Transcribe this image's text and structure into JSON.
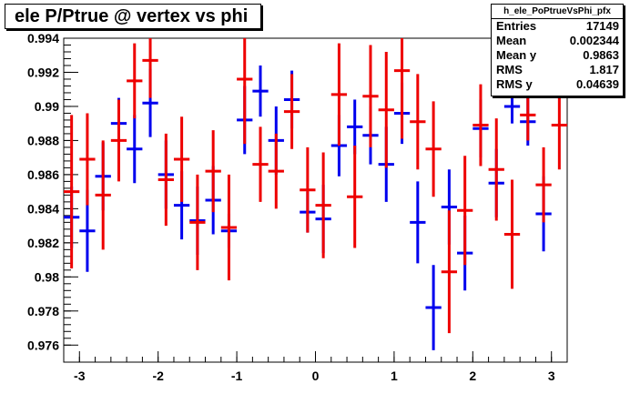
{
  "title": "ele P/Ptrue @ vertex vs phi",
  "stats": {
    "name": "h_ele_PoPtrueVsPhi_pfx",
    "rows": [
      {
        "label": "Entries",
        "value": "17149"
      },
      {
        "label": "Mean",
        "value": "0.002344"
      },
      {
        "label": "Mean y",
        "value": "0.9863"
      },
      {
        "label": "RMS",
        "value": "1.817"
      },
      {
        "label": "RMS y",
        "value": "0.04639"
      }
    ]
  },
  "chart_data": {
    "type": "scatter",
    "title": "ele P/Ptrue @ vertex vs phi",
    "xlim": [
      -3.2,
      3.2
    ],
    "ylim": [
      0.975,
      0.994
    ],
    "x_ticks": [
      -3,
      -2,
      -1,
      0,
      1,
      2,
      3
    ],
    "x_tick_labels": [
      "-3",
      "-2",
      "-1",
      "0",
      "1",
      "2",
      "3"
    ],
    "y_ticks": [
      0.976,
      0.978,
      0.98,
      0.982,
      0.984,
      0.986,
      0.988,
      0.99,
      0.992,
      0.994
    ],
    "y_tick_labels": [
      "0.976",
      "0.978",
      "0.98",
      "0.982",
      "0.984",
      "0.986",
      "0.988",
      "0.99",
      "0.992",
      "0.994"
    ],
    "grid": false,
    "bin_half_width": 0.1,
    "series": [
      {
        "color": "#0000ee",
        "points": [
          {
            "x": -3.1,
            "y": 0.9835,
            "err": 0.0018
          },
          {
            "x": -2.9,
            "y": 0.9827,
            "err": 0.0024
          },
          {
            "x": -2.7,
            "y": 0.9859,
            "err": 0.002
          },
          {
            "x": -2.5,
            "y": 0.989,
            "err": 0.0015
          },
          {
            "x": -2.3,
            "y": 0.9875,
            "err": 0.002
          },
          {
            "x": -2.1,
            "y": 0.9902,
            "err": 0.002
          },
          {
            "x": -1.9,
            "y": 0.986,
            "err": 0.002
          },
          {
            "x": -1.7,
            "y": 0.9842,
            "err": 0.002
          },
          {
            "x": -1.5,
            "y": 0.9833,
            "err": 0.002
          },
          {
            "x": -1.3,
            "y": 0.9845,
            "err": 0.002
          },
          {
            "x": -1.1,
            "y": 0.9827,
            "err": 0.001
          },
          {
            "x": -0.9,
            "y": 0.9892,
            "err": 0.002
          },
          {
            "x": -0.7,
            "y": 0.9909,
            "err": 0.0015
          },
          {
            "x": -0.5,
            "y": 0.988,
            "err": 0.002
          },
          {
            "x": -0.3,
            "y": 0.9904,
            "err": 0.0017
          },
          {
            "x": -0.1,
            "y": 0.9838,
            "err": 0.0012
          },
          {
            "x": 0.1,
            "y": 0.9834,
            "err": 0.002
          },
          {
            "x": 0.3,
            "y": 0.9877,
            "err": 0.0018
          },
          {
            "x": 0.5,
            "y": 0.9888,
            "err": 0.0016
          },
          {
            "x": 0.7,
            "y": 0.9883,
            "err": 0.0017
          },
          {
            "x": 0.9,
            "y": 0.9866,
            "err": 0.0022
          },
          {
            "x": 1.1,
            "y": 0.9896,
            "err": 0.0018
          },
          {
            "x": 1.3,
            "y": 0.9832,
            "err": 0.0024
          },
          {
            "x": 1.5,
            "y": 0.9782,
            "err": 0.0025
          },
          {
            "x": 1.7,
            "y": 0.9841,
            "err": 0.0022
          },
          {
            "x": 1.9,
            "y": 0.9814,
            "err": 0.0022
          },
          {
            "x": 2.1,
            "y": 0.9887,
            "err": 0.0017
          },
          {
            "x": 2.3,
            "y": 0.9855,
            "err": 0.002
          },
          {
            "x": 2.5,
            "y": 0.99,
            "err": 0.001
          },
          {
            "x": 2.7,
            "y": 0.9891,
            "err": 0.0014
          },
          {
            "x": 2.9,
            "y": 0.9837,
            "err": 0.0022
          }
        ]
      },
      {
        "color": "#ee0000",
        "points": [
          {
            "x": -3.1,
            "y": 0.985,
            "err": 0.0045
          },
          {
            "x": -2.9,
            "y": 0.9869,
            "err": 0.0027
          },
          {
            "x": -2.7,
            "y": 0.9848,
            "err": 0.0032
          },
          {
            "x": -2.5,
            "y": 0.988,
            "err": 0.0024
          },
          {
            "x": -2.3,
            "y": 0.9915,
            "err": 0.0022
          },
          {
            "x": -2.1,
            "y": 0.9927,
            "err": 0.0022
          },
          {
            "x": -1.9,
            "y": 0.9857,
            "err": 0.0027
          },
          {
            "x": -1.7,
            "y": 0.9869,
            "err": 0.0025
          },
          {
            "x": -1.5,
            "y": 0.9832,
            "err": 0.0028
          },
          {
            "x": -1.3,
            "y": 0.9862,
            "err": 0.0024
          },
          {
            "x": -1.1,
            "y": 0.9829,
            "err": 0.0031
          },
          {
            "x": -0.9,
            "y": 0.9916,
            "err": 0.0038
          },
          {
            "x": -0.7,
            "y": 0.9866,
            "err": 0.0022
          },
          {
            "x": -0.5,
            "y": 0.9862,
            "err": 0.0022
          },
          {
            "x": -0.3,
            "y": 0.9897,
            "err": 0.0022
          },
          {
            "x": -0.1,
            "y": 0.9851,
            "err": 0.0025
          },
          {
            "x": 0.1,
            "y": 0.9842,
            "err": 0.0031
          },
          {
            "x": 0.3,
            "y": 0.9907,
            "err": 0.003
          },
          {
            "x": 0.5,
            "y": 0.9847,
            "err": 0.003
          },
          {
            "x": 0.7,
            "y": 0.9906,
            "err": 0.003
          },
          {
            "x": 0.9,
            "y": 0.9898,
            "err": 0.0034
          },
          {
            "x": 1.1,
            "y": 0.9921,
            "err": 0.004
          },
          {
            "x": 1.3,
            "y": 0.9891,
            "err": 0.0028
          },
          {
            "x": 1.5,
            "y": 0.9875,
            "err": 0.0028
          },
          {
            "x": 1.7,
            "y": 0.9803,
            "err": 0.0036
          },
          {
            "x": 1.9,
            "y": 0.9839,
            "err": 0.0032
          },
          {
            "x": 2.1,
            "y": 0.9889,
            "err": 0.0024
          },
          {
            "x": 2.3,
            "y": 0.9863,
            "err": 0.003
          },
          {
            "x": 2.5,
            "y": 0.9825,
            "err": 0.0032
          },
          {
            "x": 2.7,
            "y": 0.9895,
            "err": 0.0015
          },
          {
            "x": 2.9,
            "y": 0.9854,
            "err": 0.0022
          },
          {
            "x": 3.1,
            "y": 0.9889,
            "err": 0.0026
          }
        ]
      }
    ]
  }
}
